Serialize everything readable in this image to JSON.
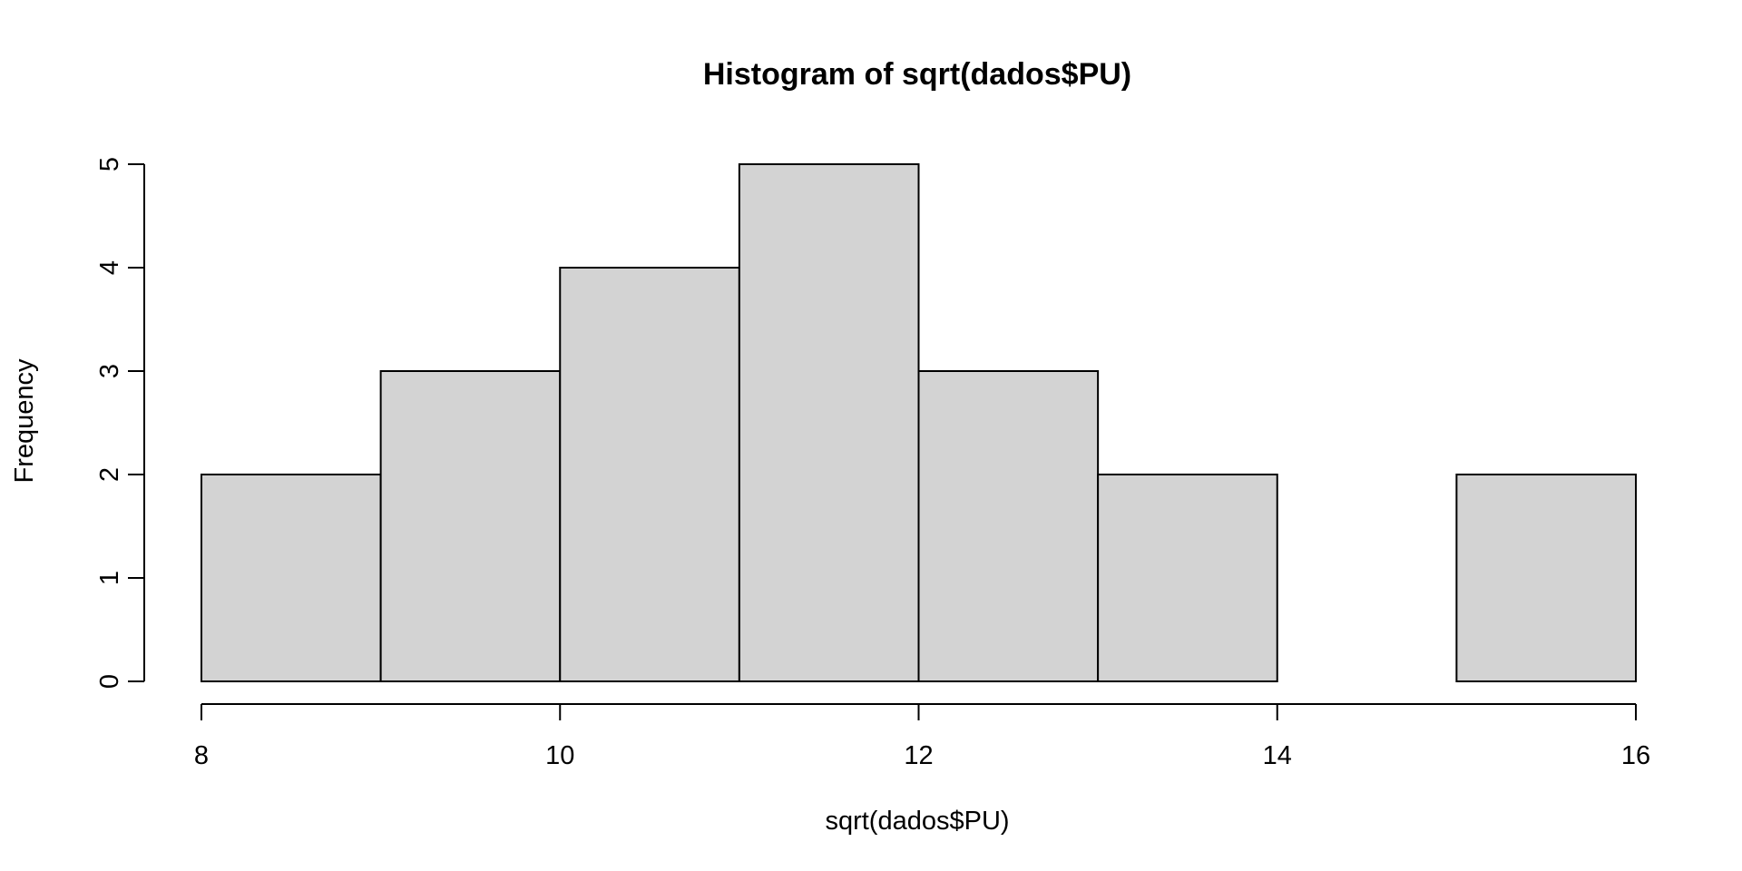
{
  "chart_data": {
    "type": "bar",
    "subtype": "histogram",
    "title": "Histogram of sqrt(dados$PU)",
    "xlabel": "sqrt(dados$PU)",
    "ylabel": "Frequency",
    "bins": [
      {
        "start": 8,
        "end": 9,
        "count": 2
      },
      {
        "start": 9,
        "end": 10,
        "count": 3
      },
      {
        "start": 10,
        "end": 11,
        "count": 4
      },
      {
        "start": 11,
        "end": 12,
        "count": 5
      },
      {
        "start": 12,
        "end": 13,
        "count": 3
      },
      {
        "start": 13,
        "end": 14,
        "count": 2
      },
      {
        "start": 14,
        "end": 15,
        "count": 0
      },
      {
        "start": 15,
        "end": 16,
        "count": 2
      }
    ],
    "xlim": [
      8,
      16
    ],
    "ylim": [
      0,
      5
    ],
    "xticks": [
      "8",
      "10",
      "12",
      "14",
      "16"
    ],
    "yticks": [
      "0",
      "1",
      "2",
      "3",
      "4",
      "5"
    ],
    "grid": false,
    "colors": {
      "bar_fill": "#d3d3d3",
      "bar_stroke": "#000000"
    }
  }
}
